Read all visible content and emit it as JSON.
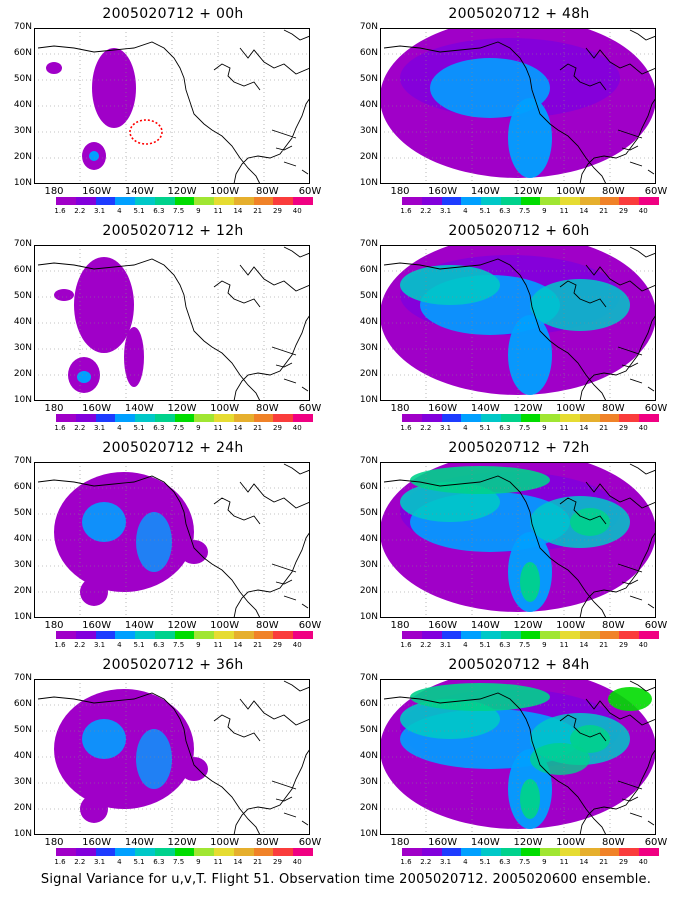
{
  "panels": [
    {
      "title": "2005020712 + 00h",
      "level": 0
    },
    {
      "title": "2005020712 + 48h",
      "level": 3
    },
    {
      "title": "2005020712 + 12h",
      "level": 1
    },
    {
      "title": "2005020712 + 60h",
      "level": 4
    },
    {
      "title": "2005020712 + 24h",
      "level": 2
    },
    {
      "title": "2005020712 + 72h",
      "level": 5
    },
    {
      "title": "2005020712 + 36h",
      "level": 2
    },
    {
      "title": "2005020712 + 84h",
      "level": 6
    }
  ],
  "y_ticks": [
    "70N",
    "60N",
    "50N",
    "40N",
    "30N",
    "20N",
    "10N"
  ],
  "x_ticks": [
    "180",
    "160W",
    "140W",
    "120W",
    "100W",
    "80W",
    "60W"
  ],
  "colorbar": {
    "labels": [
      "1.6",
      "2.2",
      "3.1",
      "4",
      "5.1",
      "6.3",
      "7.5",
      "9",
      "11",
      "14",
      "21",
      "29",
      "40"
    ],
    "colors": [
      "#a000c8",
      "#8200dc",
      "#1e3cff",
      "#00a0ff",
      "#00c8c8",
      "#00d28c",
      "#00dc00",
      "#a0e632",
      "#e6dc32",
      "#e6af2d",
      "#f08228",
      "#fa3c3c",
      "#f00082"
    ]
  },
  "caption": "Signal Variance for u,v,T. Flight 51. Observation time 2005020712. 2005020600 ensemble."
}
